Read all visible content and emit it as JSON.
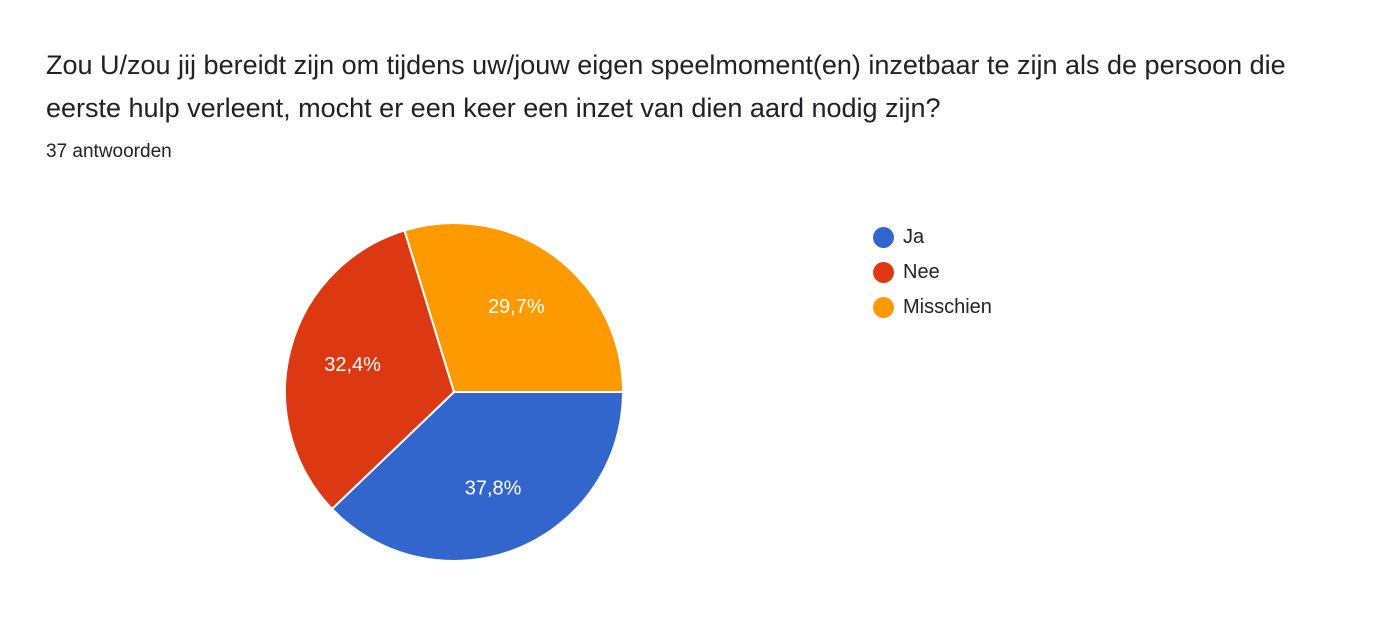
{
  "question": "Zou U/zou jij bereidt zijn om tijdens uw/jouw eigen speelmoment(en) inzetbaar te zijn als de persoon die eerste hulp verleent, mocht er een keer een inzet van dien aard nodig zijn?",
  "response_count": "37 antwoorden",
  "chart_data": {
    "type": "pie",
    "title": "",
    "legend_position": "right",
    "slices": [
      {
        "name": "Ja",
        "value": 37.8,
        "label": "37,8%",
        "color": "#3366cc"
      },
      {
        "name": "Nee",
        "value": 32.4,
        "label": "32,4%",
        "color": "#dc3912"
      },
      {
        "name": "Misschien",
        "value": 29.7,
        "label": "29,7%",
        "color": "#ff9900"
      }
    ]
  }
}
